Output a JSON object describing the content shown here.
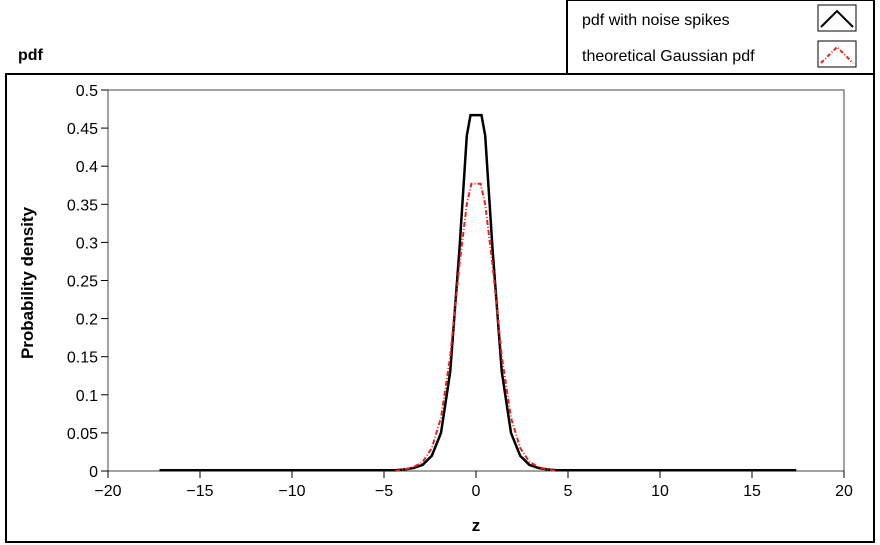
{
  "panel_title": "pdf",
  "legend": {
    "entries": [
      {
        "label": "pdf with noise spikes",
        "icon": "black-solid-line-icon"
      },
      {
        "label": "theoretical Gaussian pdf",
        "icon": "red-dashdot-line-icon"
      }
    ]
  },
  "chart_data": {
    "type": "line",
    "xlabel": "z",
    "ylabel": "Probability density",
    "xlim": [
      -20,
      20
    ],
    "ylim": [
      0,
      0.5
    ],
    "xticks": [
      -20,
      -15,
      -10,
      -5,
      0,
      5,
      10,
      15,
      20
    ],
    "xtick_labels": [
      "−20",
      "−15",
      "−10",
      "−5",
      "0",
      "5",
      "10",
      "15",
      "20"
    ],
    "yticks": [
      0,
      0.05,
      0.1,
      0.15,
      0.2,
      0.25,
      0.3,
      0.35,
      0.4,
      0.45,
      0.5
    ],
    "ytick_labels": [
      "0",
      "0.05",
      "0.1",
      "0.15",
      "0.2",
      "0.25",
      "0.3",
      "0.35",
      "0.4",
      "0.45",
      "0.5"
    ],
    "grid": false,
    "legend_position": "top-right, outside plot",
    "series": [
      {
        "name": "pdf with noise spikes",
        "color": "#000000",
        "style": "solid",
        "x": [
          -17.2,
          -4.4,
          -3.9,
          -3.4,
          -2.9,
          -2.4,
          -1.9,
          -1.4,
          -0.9,
          -0.5,
          -0.3,
          0.3,
          0.5,
          0.9,
          1.4,
          1.9,
          2.4,
          2.9,
          3.4,
          3.9,
          4.4,
          17.4
        ],
        "y": [
          0.001,
          0.001,
          0.002,
          0.004,
          0.008,
          0.02,
          0.05,
          0.13,
          0.29,
          0.44,
          0.467,
          0.467,
          0.44,
          0.29,
          0.13,
          0.05,
          0.02,
          0.008,
          0.004,
          0.002,
          0.001,
          0.001
        ]
      },
      {
        "name": "theoretical Gaussian pdf",
        "color": "#e8231e",
        "style": "dashdot",
        "x": [
          -4.4,
          -3.9,
          -3.4,
          -2.9,
          -2.4,
          -1.9,
          -1.4,
          -0.9,
          -0.5,
          -0.25,
          0.25,
          0.5,
          0.9,
          1.4,
          1.9,
          2.4,
          2.9,
          3.4,
          3.9,
          4.4
        ],
        "y": [
          0.0,
          0.002,
          0.005,
          0.012,
          0.03,
          0.07,
          0.15,
          0.27,
          0.35,
          0.377,
          0.377,
          0.35,
          0.27,
          0.15,
          0.07,
          0.03,
          0.012,
          0.005,
          0.002,
          0.0
        ]
      }
    ]
  }
}
